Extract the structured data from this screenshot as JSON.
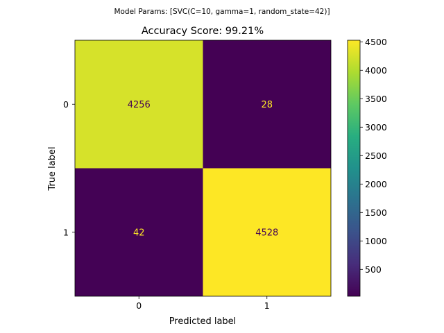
{
  "suptitle": "Model Params: [SVC(C=10, gamma=1, random_state=42)]",
  "chart_data": {
    "type": "heatmap",
    "title": "Accuracy Score: 99.21%",
    "xlabel": "Predicted label",
    "ylabel": "True label",
    "x_categories": [
      "0",
      "1"
    ],
    "y_categories": [
      "0",
      "1"
    ],
    "values": [
      [
        4256,
        28
      ],
      [
        42,
        4528
      ]
    ],
    "cell_labels": [
      [
        "4256",
        "28"
      ],
      [
        "42",
        "4528"
      ]
    ],
    "colormap": "viridis",
    "colorbar": {
      "range": [
        28,
        4528
      ],
      "ticks": [
        500,
        1000,
        1500,
        2000,
        2500,
        3000,
        3500,
        4000,
        4500
      ],
      "tick_labels": [
        "500",
        "1000",
        "1500",
        "2000",
        "2500",
        "3000",
        "3500",
        "4000",
        "4500"
      ]
    },
    "colors": {
      "low": "#440154",
      "high": "#fde725",
      "text_on_dark": "#fde725",
      "text_on_light": "#440154"
    }
  }
}
